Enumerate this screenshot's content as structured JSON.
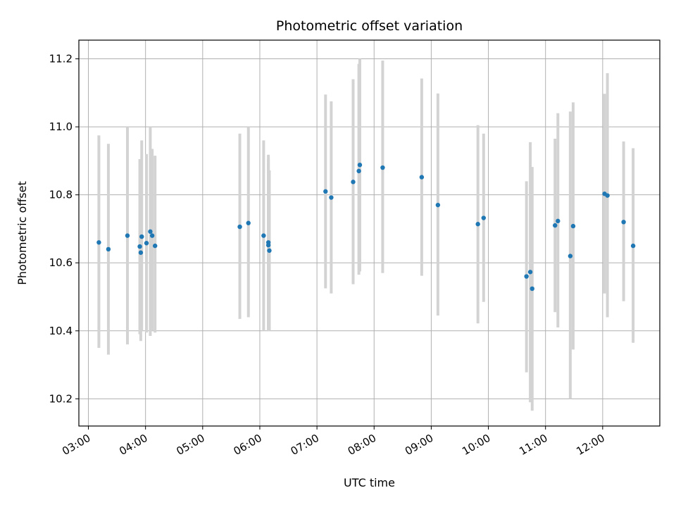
{
  "chart_data": {
    "type": "scatter",
    "title": "Photometric offset variation",
    "xlabel": "UTC time",
    "ylabel": "Photometric offset",
    "x_unit": "UTC time (HH:MM)",
    "xlim": [
      "02:50",
      "13:00"
    ],
    "ylim": [
      10.12,
      11.255
    ],
    "x_ticks": [
      "03:00",
      "04:00",
      "05:00",
      "06:00",
      "07:00",
      "08:00",
      "09:00",
      "10:00",
      "11:00",
      "12:00"
    ],
    "y_ticks": [
      10.2,
      10.4,
      10.6,
      10.8,
      11.0,
      11.2
    ],
    "y_tick_labels": [
      "10.2",
      "10.4",
      "10.6",
      "10.8",
      "11.0",
      "11.2"
    ],
    "grid": true,
    "point_color": "#1f77b4",
    "errorbar_color": "#d3d3d3",
    "points": [
      {
        "t": "03:11",
        "y": 10.66,
        "lo": 10.35,
        "hi": 10.975
      },
      {
        "t": "03:21",
        "y": 10.64,
        "lo": 10.33,
        "hi": 10.95
      },
      {
        "t": "03:41",
        "y": 10.68,
        "lo": 10.36,
        "hi": 11.0
      },
      {
        "t": "03:54",
        "y": 10.648,
        "lo": 10.39,
        "hi": 10.905
      },
      {
        "t": "03:55",
        "y": 10.63,
        "lo": 10.37,
        "hi": 10.89
      },
      {
        "t": "03:56",
        "y": 10.677,
        "lo": 10.4,
        "hi": 10.96
      },
      {
        "t": "04:01",
        "y": 10.658,
        "lo": 10.395,
        "hi": 10.92
      },
      {
        "t": "04:05",
        "y": 10.692,
        "lo": 10.385,
        "hi": 11.0
      },
      {
        "t": "04:07",
        "y": 10.68,
        "lo": 10.4,
        "hi": 10.935
      },
      {
        "t": "04:10",
        "y": 10.65,
        "lo": 10.395,
        "hi": 10.915
      },
      {
        "t": "05:39",
        "y": 10.706,
        "lo": 10.435,
        "hi": 10.98
      },
      {
        "t": "05:48",
        "y": 10.717,
        "lo": 10.44,
        "hi": 11.0
      },
      {
        "t": "06:04",
        "y": 10.68,
        "lo": 10.4,
        "hi": 10.96
      },
      {
        "t": "06:09",
        "y": 10.66,
        "lo": 10.4,
        "hi": 10.918
      },
      {
        "t": "06:09",
        "y": 10.652,
        "lo": 10.4,
        "hi": 10.905
      },
      {
        "t": "06:10",
        "y": 10.636,
        "lo": 10.4,
        "hi": 10.872
      },
      {
        "t": "07:09",
        "y": 10.81,
        "lo": 10.525,
        "hi": 11.095
      },
      {
        "t": "07:15",
        "y": 10.792,
        "lo": 10.51,
        "hi": 11.075
      },
      {
        "t": "07:38",
        "y": 10.838,
        "lo": 10.537,
        "hi": 11.14
      },
      {
        "t": "07:44",
        "y": 10.87,
        "lo": 10.565,
        "hi": 11.185
      },
      {
        "t": "07:45",
        "y": 10.888,
        "lo": 10.575,
        "hi": 11.2
      },
      {
        "t": "08:09",
        "y": 10.88,
        "lo": 10.57,
        "hi": 11.195
      },
      {
        "t": "08:50",
        "y": 10.852,
        "lo": 10.562,
        "hi": 11.142
      },
      {
        "t": "09:07",
        "y": 10.77,
        "lo": 10.445,
        "hi": 11.098
      },
      {
        "t": "09:49",
        "y": 10.714,
        "lo": 10.422,
        "hi": 11.005
      },
      {
        "t": "09:55",
        "y": 10.732,
        "lo": 10.485,
        "hi": 10.98
      },
      {
        "t": "10:40",
        "y": 10.56,
        "lo": 10.278,
        "hi": 10.84
      },
      {
        "t": "10:44",
        "y": 10.573,
        "lo": 10.19,
        "hi": 10.955
      },
      {
        "t": "10:46",
        "y": 10.524,
        "lo": 10.165,
        "hi": 10.882
      },
      {
        "t": "11:10",
        "y": 10.71,
        "lo": 10.455,
        "hi": 10.965
      },
      {
        "t": "11:13",
        "y": 10.723,
        "lo": 10.41,
        "hi": 11.04
      },
      {
        "t": "11:26",
        "y": 10.62,
        "lo": 10.2,
        "hi": 11.045
      },
      {
        "t": "11:29",
        "y": 10.708,
        "lo": 10.345,
        "hi": 11.072
      },
      {
        "t": "12:02",
        "y": 10.803,
        "lo": 10.51,
        "hi": 11.097
      },
      {
        "t": "12:05",
        "y": 10.798,
        "lo": 10.44,
        "hi": 11.158
      },
      {
        "t": "12:22",
        "y": 10.72,
        "lo": 10.487,
        "hi": 10.957
      },
      {
        "t": "12:32",
        "y": 10.65,
        "lo": 10.365,
        "hi": 10.937
      }
    ]
  }
}
